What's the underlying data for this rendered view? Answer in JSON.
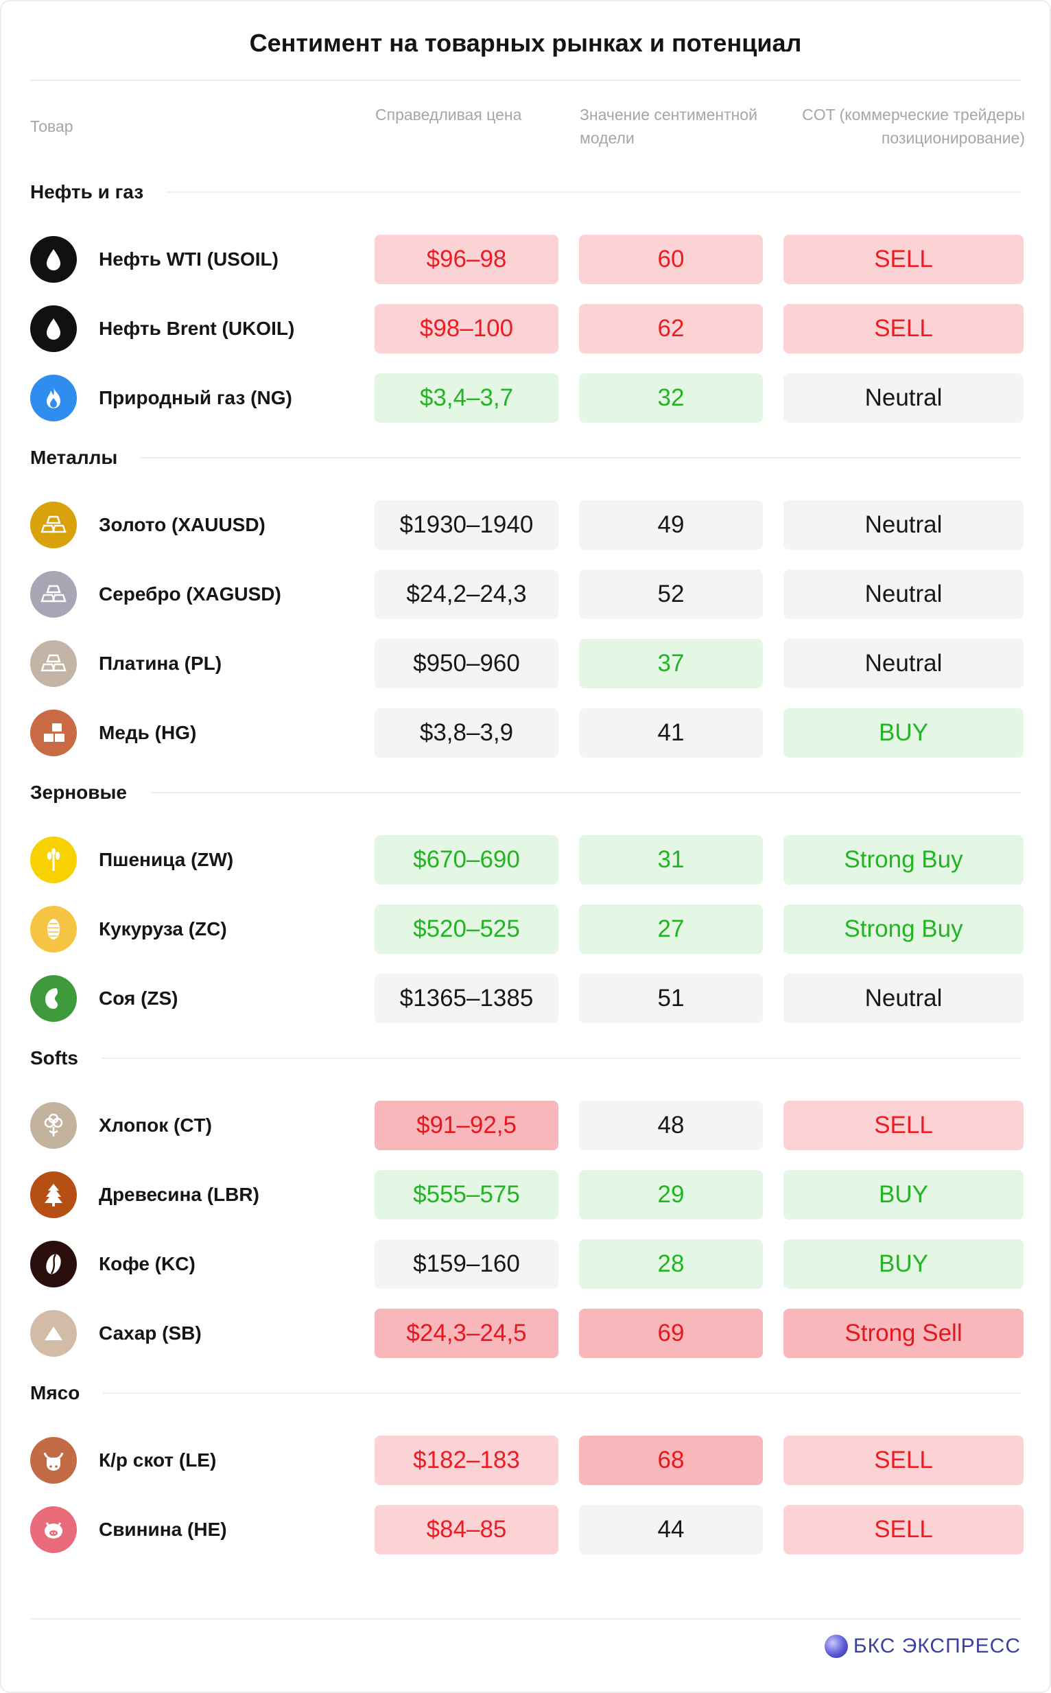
{
  "title": "Сентимент на товарных рынках и потенциал",
  "headers": {
    "product": "Товар",
    "fair_price": "Справедливая цена",
    "sentiment": "Значение сентиментной модели",
    "cot": "COT (коммерческие трейдеры позиционирование)"
  },
  "sections": [
    {
      "label": "Нефть и газ",
      "rows": [
        {
          "name": "Нефть WTI (USOIL)",
          "icon": "oil-drop-icon",
          "icon_bg": "#111111",
          "icon_fg": "#ffffff",
          "price": "$96–98",
          "price_style": "red",
          "sentiment": "60",
          "sentiment_style": "red",
          "cot": "SELL",
          "cot_style": "red"
        },
        {
          "name": "Нефть Brent (UKOIL)",
          "icon": "oil-drop-icon",
          "icon_bg": "#111111",
          "icon_fg": "#ffffff",
          "price": "$98–100",
          "price_style": "red",
          "sentiment": "62",
          "sentiment_style": "red",
          "cot": "SELL",
          "cot_style": "red"
        },
        {
          "name": "Природный газ (NG)",
          "icon": "flame-icon",
          "icon_bg": "#2f8df0",
          "icon_fg": "#ffffff",
          "price": "$3,4–3,7",
          "price_style": "grn",
          "sentiment": "32",
          "sentiment_style": "grn",
          "cot": "Neutral",
          "cot_style": "neu"
        }
      ]
    },
    {
      "label": "Металлы",
      "rows": [
        {
          "name": "Золото  (XAUUSD)",
          "icon": "gold-bars-icon",
          "icon_bg": "#d9a10b",
          "icon_fg": "#ffffff",
          "price": "$1930–1940",
          "price_style": "neu",
          "sentiment": "49",
          "sentiment_style": "neu",
          "cot": "Neutral",
          "cot_style": "neu"
        },
        {
          "name": "Серебро  (XAGUSD)",
          "icon": "silver-bars-icon",
          "icon_bg": "#a7a6b4",
          "icon_fg": "#ffffff",
          "price": "$24,2–24,3",
          "price_style": "neu",
          "sentiment": "52",
          "sentiment_style": "neu",
          "cot": "Neutral",
          "cot_style": "neu"
        },
        {
          "name": "Платина (PL)",
          "icon": "platinum-bars-icon",
          "icon_bg": "#c3b4a6",
          "icon_fg": "#ffffff",
          "price": "$950–960",
          "price_style": "neu",
          "sentiment": "37",
          "sentiment_style": "grn",
          "cot": "Neutral",
          "cot_style": "neu"
        },
        {
          "name": "Медь (HG)",
          "icon": "copper-blocks-icon",
          "icon_bg": "#c86b45",
          "icon_fg": "#ffffff",
          "price": "$3,8–3,9",
          "price_style": "neu",
          "sentiment": "41",
          "sentiment_style": "neu",
          "cot": "BUY",
          "cot_style": "grn"
        }
      ]
    },
    {
      "label": "Зерновые",
      "rows": [
        {
          "name": "Пшеница (ZW)",
          "icon": "wheat-icon",
          "icon_bg": "#f7d100",
          "icon_fg": "#ffffff",
          "price": "$670–690",
          "price_style": "grn",
          "sentiment": "31",
          "sentiment_style": "grn",
          "cot": "Strong Buy",
          "cot_style": "grn"
        },
        {
          "name": "Кукуруза (ZC)",
          "icon": "corn-icon",
          "icon_bg": "#f6c443",
          "icon_fg": "#ffffff",
          "price": "$520–525",
          "price_style": "grn",
          "sentiment": "27",
          "sentiment_style": "grn",
          "cot": "Strong Buy",
          "cot_style": "grn"
        },
        {
          "name": "Соя (ZS)",
          "icon": "soybean-icon",
          "icon_bg": "#3e9a3a",
          "icon_fg": "#ffffff",
          "price": "$1365–1385",
          "price_style": "neu",
          "sentiment": "51",
          "sentiment_style": "neu",
          "cot": "Neutral",
          "cot_style": "neu"
        }
      ]
    },
    {
      "label": "Softs",
      "rows": [
        {
          "name": "Хлопок (CT)",
          "icon": "cotton-icon",
          "icon_bg": "#c3b29d",
          "icon_fg": "#ffffff",
          "price": "$91–92,5",
          "price_style": "red2",
          "sentiment": "48",
          "sentiment_style": "neu",
          "cot": "SELL",
          "cot_style": "red"
        },
        {
          "name": "Древесина (LBR)",
          "icon": "tree-icon",
          "icon_bg": "#b54f14",
          "icon_fg": "#ffffff",
          "price": "$555–575",
          "price_style": "grn",
          "sentiment": "29",
          "sentiment_style": "grn",
          "cot": "BUY",
          "cot_style": "grn"
        },
        {
          "name": "Кофе (KC)",
          "icon": "coffee-bean-icon",
          "icon_bg": "#2a0e0b",
          "icon_fg": "#ffffff",
          "price": "$159–160",
          "price_style": "neu",
          "sentiment": "28",
          "sentiment_style": "grn",
          "cot": "BUY",
          "cot_style": "grn"
        },
        {
          "name": "Сахар (SB)",
          "icon": "sugar-icon",
          "icon_bg": "#d2bca8",
          "icon_fg": "#ffffff",
          "price": "$24,3–24,5",
          "price_style": "red2",
          "sentiment": "69",
          "sentiment_style": "red2",
          "cot": "Strong Sell",
          "cot_style": "red2"
        }
      ]
    },
    {
      "label": "Мясо",
      "rows": [
        {
          "name": "К/р скот (LE)",
          "icon": "cow-icon",
          "icon_bg": "#c46b45",
          "icon_fg": "#ffffff",
          "price": "$182–183",
          "price_style": "red",
          "sentiment": "68",
          "sentiment_style": "red2",
          "cot": "SELL",
          "cot_style": "red"
        },
        {
          "name": "Свинина (HE)",
          "icon": "pig-icon",
          "icon_bg": "#e96a78",
          "icon_fg": "#ffffff",
          "price": "$84–85",
          "price_style": "red",
          "sentiment": "44",
          "sentiment_style": "neu",
          "cot": "SELL",
          "cot_style": "red"
        }
      ]
    }
  ],
  "logo": {
    "text": "БКС ЭКСПРЕСС",
    "color": "#3b3fa0"
  }
}
